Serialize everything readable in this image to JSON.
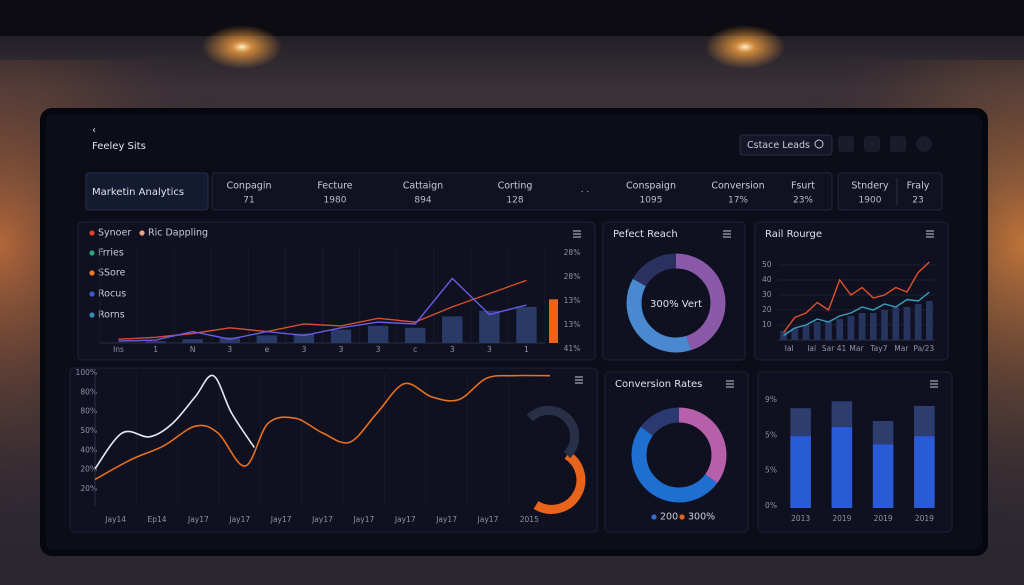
{
  "header": {
    "title": "Feeley Sits",
    "search": "Cstace Leads"
  },
  "kpi_strip": {
    "title": "Marketin Analytics",
    "items": [
      {
        "label": "Conpagin",
        "value": "71"
      },
      {
        "label": "Fecture",
        "value": "1980"
      },
      {
        "label": "Cattaign",
        "value": "894"
      },
      {
        "label": "Corting",
        "value": "128"
      },
      {
        "label": "Conspaign",
        "value": "1095"
      },
      {
        "label": "Conversion",
        "value": "17%"
      },
      {
        "label": "Fsurt",
        "value": "23%"
      },
      {
        "label": "Stndery",
        "value": "1900"
      },
      {
        "label": "Fraly",
        "value": "23"
      }
    ]
  },
  "chart_data": [
    {
      "type": "combo",
      "legend": [
        {
          "name": "Synoer",
          "color": "#e0442a"
        },
        {
          "name": "Ric Dappling",
          "color": "#f0a080"
        },
        {
          "name": "Frries",
          "color": "#2fa37a"
        },
        {
          "name": "SSore",
          "color": "#f07a20"
        },
        {
          "name": "Rocus",
          "color": "#3a5ad0"
        },
        {
          "name": "Rorns",
          "color": "#3a8ab0"
        }
      ],
      "categories": [
        "Ins",
        "1",
        "N",
        "3",
        "e",
        "3",
        "3",
        "3",
        "c",
        "3",
        "3",
        "1"
      ],
      "y_labels": [
        "28%",
        "28%",
        "13%",
        "13%",
        "41%"
      ],
      "ylim": [
        0,
        100
      ],
      "series": [
        {
          "kind": "bar",
          "color": "#2a3a66",
          "values": [
            0,
            2,
            4,
            6,
            8,
            10,
            14,
            18,
            16,
            28,
            34,
            38
          ]
        },
        {
          "kind": "line",
          "color": "#d4502c",
          "values": [
            4,
            6,
            10,
            16,
            12,
            20,
            18,
            26,
            22,
            38,
            52,
            66
          ]
        },
        {
          "kind": "line",
          "color": "#6a5ae8",
          "values": [
            2,
            3,
            12,
            4,
            12,
            8,
            16,
            22,
            20,
            68,
            30,
            40
          ]
        }
      ],
      "highlight": {
        "color": "#e8641c",
        "value": 46
      }
    },
    {
      "type": "donut",
      "title": "Pefect Reach",
      "center_label": "300% Vert",
      "values": [
        45,
        38,
        17
      ],
      "colors": [
        "#8a5aa8",
        "#4a88d0",
        "#2a3160"
      ]
    },
    {
      "type": "combo",
      "title": "Rail Rourge",
      "x_labels": [
        "Ial",
        "Ial",
        "Sar 41",
        "Mar",
        "Tay7",
        "Mar",
        "Pa/23"
      ],
      "x": [
        0,
        1,
        2,
        3,
        4,
        5,
        6,
        7,
        8,
        9,
        10,
        11,
        12,
        13
      ],
      "xlim": [
        -0.5,
        13.5
      ],
      "ylim": [
        0,
        60
      ],
      "yticks": [
        10,
        20,
        30,
        40,
        50
      ],
      "series": [
        {
          "kind": "bar",
          "color": "#26345e",
          "values": [
            6,
            8,
            10,
            12,
            12,
            14,
            16,
            18,
            18,
            20,
            22,
            22,
            24,
            26
          ]
        },
        {
          "kind": "line",
          "color": "#e0502a",
          "values": [
            5,
            15,
            18,
            25,
            20,
            40,
            30,
            35,
            28,
            30,
            35,
            32,
            45,
            52
          ]
        },
        {
          "kind": "line",
          "color": "#3aa0c0",
          "values": [
            3,
            8,
            10,
            14,
            12,
            16,
            18,
            22,
            20,
            24,
            22,
            27,
            26,
            32
          ]
        }
      ]
    },
    {
      "type": "line",
      "x_labels": [
        "Jay14",
        "Ep14",
        "Jay17",
        "Jay17",
        "Jay17",
        "Jay17",
        "Jay17",
        "Jay17",
        "Jay17",
        "Jay17",
        "2015"
      ],
      "y_labels": [
        "100%",
        "80%",
        "80%",
        "50%",
        "40%",
        "20%",
        "20%"
      ],
      "xlim": [
        0,
        100
      ],
      "ylim": [
        0,
        100
      ],
      "series": [
        {
          "kind": "line",
          "color": "#e8e8f0",
          "x": [
            0,
            6,
            12,
            17,
            22,
            26,
            30,
            35
          ],
          "values": [
            28,
            55,
            52,
            62,
            82,
            98,
            70,
            44
          ]
        },
        {
          "kind": "line",
          "color": "#e8701e",
          "x": [
            0,
            8,
            15,
            22,
            27,
            33,
            38,
            44,
            50,
            56,
            62,
            68,
            74,
            80,
            86,
            92,
            100
          ],
          "values": [
            20,
            35,
            45,
            60,
            55,
            30,
            62,
            66,
            55,
            48,
            70,
            92,
            82,
            80,
            96,
            98,
            98
          ]
        }
      ]
    },
    {
      "type": "donut",
      "title": "Conversion Rates",
      "values": [
        35,
        50,
        15
      ],
      "colors": [
        "#b560a8",
        "#1f6fd0",
        "#2a3a70"
      ],
      "legend": [
        {
          "name": "200",
          "color": "#2f6fd0"
        },
        {
          "name": "300%",
          "color": "#e8641c"
        }
      ]
    },
    {
      "type": "stacked_bar",
      "categories": [
        "2013",
        "2019",
        "2019",
        "2019"
      ],
      "y_labels": [
        "9%",
        "5%",
        "5%",
        "0%"
      ],
      "ylim": [
        0,
        100
      ],
      "series": [
        {
          "color": "#2a5bd6",
          "values": [
            62,
            70,
            55,
            62
          ]
        },
        {
          "color": "#2d3e6e",
          "values": [
            24,
            22,
            20,
            26
          ]
        }
      ]
    }
  ]
}
